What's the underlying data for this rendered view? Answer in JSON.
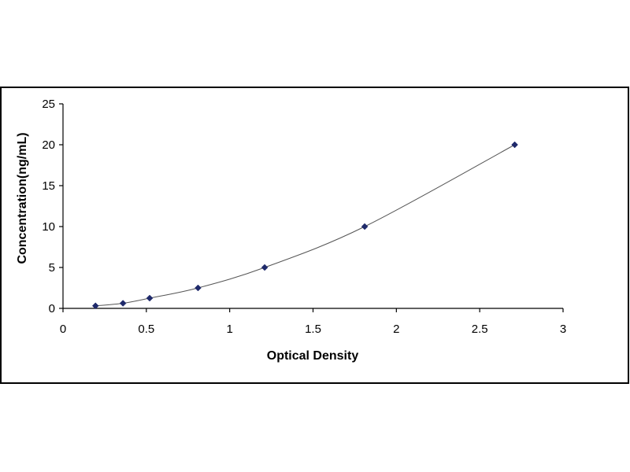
{
  "chart_data": {
    "type": "scatter",
    "title": "",
    "xlabel": "Optical Density",
    "ylabel": "Concentration(ng/mL)",
    "xlim": [
      0,
      3
    ],
    "ylim": [
      0,
      25
    ],
    "xticks": [
      {
        "value": 0,
        "label": "0"
      },
      {
        "value": 0.5,
        "label": "0.5"
      },
      {
        "value": 1,
        "label": "1"
      },
      {
        "value": 1.5,
        "label": "1.5"
      },
      {
        "value": 2,
        "label": "2"
      },
      {
        "value": 2.5,
        "label": "2.5"
      },
      {
        "value": 3,
        "label": "3"
      }
    ],
    "yticks": [
      {
        "value": 0,
        "label": "0"
      },
      {
        "value": 5,
        "label": "5"
      },
      {
        "value": 10,
        "label": "10"
      },
      {
        "value": 15,
        "label": "15"
      },
      {
        "value": 20,
        "label": "20"
      },
      {
        "value": 25,
        "label": "25"
      }
    ],
    "grid": false,
    "legend": "none",
    "series": [
      {
        "points": [
          {
            "x": 0.195,
            "y": 0.31
          },
          {
            "x": 0.36,
            "y": 0.625
          },
          {
            "x": 0.52,
            "y": 1.25
          },
          {
            "x": 0.81,
            "y": 2.5
          },
          {
            "x": 1.21,
            "y": 5
          },
          {
            "x": 1.81,
            "y": 10
          },
          {
            "x": 2.71,
            "y": 20
          }
        ],
        "fit_curve": true,
        "marker": "diamond",
        "color": "#1f2a6b"
      }
    ]
  }
}
